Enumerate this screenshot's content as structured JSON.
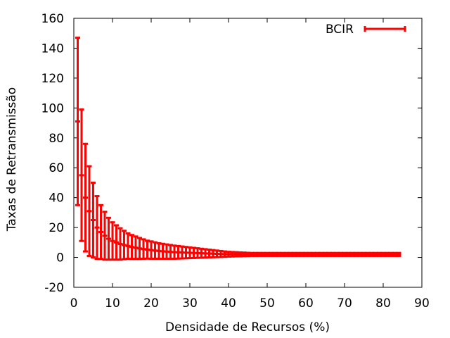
{
  "chart_data": {
    "type": "scatter",
    "title": "",
    "xlabel": "Densidade de Recursos (%)",
    "ylabel": "Taxas de Retransmissão",
    "xlim": [
      0,
      90
    ],
    "ylim": [
      -20,
      160
    ],
    "xticks": [
      0,
      10,
      20,
      30,
      40,
      50,
      60,
      70,
      80,
      90
    ],
    "yticks": [
      -20,
      0,
      20,
      40,
      60,
      80,
      100,
      120,
      140,
      160
    ],
    "grid": false,
    "legend_position": "top-right",
    "series": [
      {
        "name": "BCIR",
        "color": "#ff0000",
        "style": "errorbars",
        "x": [
          1,
          2,
          3,
          4,
          5,
          6,
          7,
          8,
          9,
          10,
          11,
          12,
          13,
          14,
          15,
          16,
          17,
          18,
          19,
          20,
          21,
          22,
          23,
          24,
          25,
          26,
          27,
          28,
          29,
          30,
          31,
          32,
          33,
          34,
          35,
          36,
          37,
          38,
          39,
          40,
          41,
          42,
          43,
          44,
          45,
          46,
          47,
          48,
          49,
          50,
          51,
          52,
          53,
          54,
          55,
          56,
          57,
          58,
          59,
          60,
          61,
          62,
          63,
          64,
          65,
          66,
          67,
          68,
          69,
          70,
          71,
          72,
          73,
          74,
          75,
          76,
          77,
          78,
          79,
          80,
          81,
          82,
          83,
          84
        ],
        "y": [
          91,
          55,
          40,
          31,
          25,
          20,
          17,
          14.5,
          12.5,
          11,
          10,
          9,
          8.3,
          7.6,
          7,
          6.5,
          6,
          5.6,
          5.2,
          4.9,
          4.6,
          4.3,
          4.1,
          3.9,
          3.7,
          3.5,
          3.4,
          3.3,
          3.2,
          3.1,
          3,
          2.9,
          2.8,
          2.7,
          2.6,
          2.5,
          2.4,
          2.3,
          2.2,
          2.15,
          2.1,
          2.1,
          2.05,
          2.05,
          2,
          2,
          2,
          2,
          2,
          2,
          2,
          2,
          2,
          2,
          2,
          2,
          2,
          2,
          2,
          2,
          2,
          2,
          2,
          2,
          2,
          2,
          2,
          2,
          2,
          2,
          2,
          2,
          2,
          2,
          2,
          2,
          2,
          2,
          2,
          2,
          2,
          2,
          2,
          2
        ],
        "err": [
          56,
          44,
          36,
          30,
          25,
          21,
          18,
          16,
          14,
          12.5,
          11.5,
          10.5,
          9.5,
          8.5,
          8,
          7.5,
          7,
          6.5,
          6,
          5.8,
          5.5,
          5.2,
          5,
          4.8,
          4.6,
          4.4,
          4.2,
          4,
          3.8,
          3.6,
          3.4,
          3.2,
          3,
          2.8,
          2.6,
          2.4,
          2.2,
          2,
          1.8,
          1.6,
          1.5,
          1.4,
          1.3,
          1.2,
          1.1,
          1,
          1,
          1,
          1,
          1,
          1,
          1,
          1,
          1,
          1,
          1,
          1,
          1,
          1,
          1,
          1,
          1,
          1,
          1,
          1,
          1,
          1,
          1,
          1,
          1,
          1,
          1,
          1,
          1,
          1,
          1,
          1,
          1,
          1,
          1,
          1,
          1,
          1,
          1
        ]
      }
    ]
  }
}
